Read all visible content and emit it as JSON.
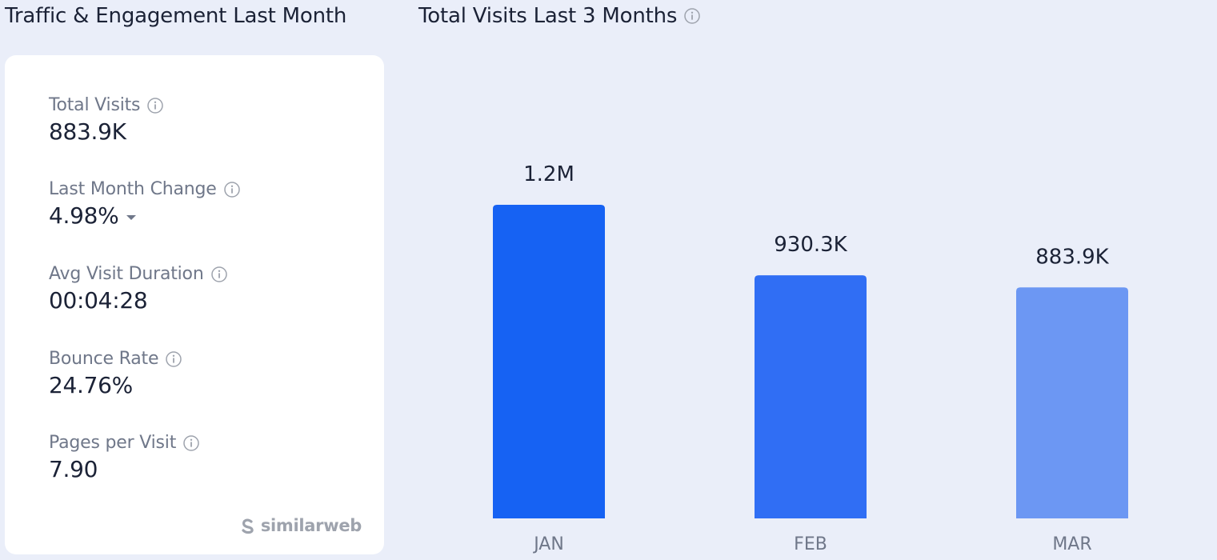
{
  "left_panel": {
    "title": "Traffic & Engagement Last Month",
    "metrics": [
      {
        "label": "Total Visits",
        "value": "883.9K"
      },
      {
        "label": "Last Month Change",
        "value": "4.98%",
        "trend": "down"
      },
      {
        "label": "Avg Visit Duration",
        "value": "00:04:28"
      },
      {
        "label": "Bounce Rate",
        "value": "24.76%"
      },
      {
        "label": "Pages per Visit",
        "value": "7.90"
      }
    ],
    "brand": "similarweb"
  },
  "chart_data": {
    "type": "bar",
    "title": "Total Visits Last 3 Months",
    "categories": [
      "JAN",
      "FEB",
      "MAR"
    ],
    "values": [
      1200000,
      930300,
      883900
    ],
    "value_labels": [
      "1.2M",
      "930.3K",
      "883.9K"
    ],
    "colors": [
      "#1662f3",
      "#306ef4",
      "#6c97f3"
    ],
    "ylim": [
      0,
      1200000
    ],
    "xlabel": "",
    "ylabel": "",
    "grid": false
  },
  "colors": {
    "background": "#eaeef9",
    "card": "#ffffff",
    "text_primary": "#1b2236",
    "text_secondary": "#6f7789",
    "brand": "#9ea3ad"
  }
}
